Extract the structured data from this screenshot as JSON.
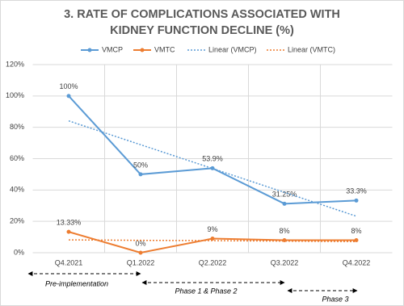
{
  "chart_data": {
    "type": "line",
    "title": "3. RATE OF COMPLICATIONS ASSOCIATED WITH KIDNEY FUNCTION DECLINE (%)",
    "categories": [
      "Q4.2021",
      "Q1.2022",
      "Q2.2022",
      "Q3.2022",
      "Q4.2022"
    ],
    "series": [
      {
        "name": "VMCP",
        "color": "#5b9bd5",
        "line_style": "solid",
        "values": [
          100,
          50,
          53.9,
          31.25,
          33.3
        ],
        "value_labels": [
          "100%",
          "50%",
          "53.9%",
          "31.25%",
          "33.3%"
        ]
      },
      {
        "name": "VMTC",
        "color": "#ed7d31",
        "line_style": "solid",
        "values": [
          13.33,
          0,
          9,
          8,
          8
        ],
        "value_labels": [
          "13.33%",
          "0%",
          "9%",
          "8%",
          "8%"
        ]
      },
      {
        "name": "Linear (VMCP)",
        "color": "#5b9bd5",
        "line_style": "dotted",
        "values": [
          84.1,
          68.9,
          53.7,
          38.5,
          23.3
        ]
      },
      {
        "name": "Linear (VMTC)",
        "color": "#ed7d31",
        "line_style": "dotted",
        "values": [
          8.2,
          7.9,
          7.7,
          7.4,
          7.1
        ]
      }
    ],
    "ylim": [
      0,
      120
    ],
    "yticks": [
      {
        "value": 0,
        "label": "0%"
      },
      {
        "value": 20,
        "label": "20%"
      },
      {
        "value": 40,
        "label": "40%"
      },
      {
        "value": 60,
        "label": "60%"
      },
      {
        "value": 80,
        "label": "80%"
      },
      {
        "value": 100,
        "label": "100%"
      },
      {
        "value": 120,
        "label": "120%"
      }
    ],
    "grid": true,
    "legend": "top",
    "annotations": [
      "Pre-implementation",
      "Phase 1 & Phase 2",
      "Phase 3"
    ]
  }
}
